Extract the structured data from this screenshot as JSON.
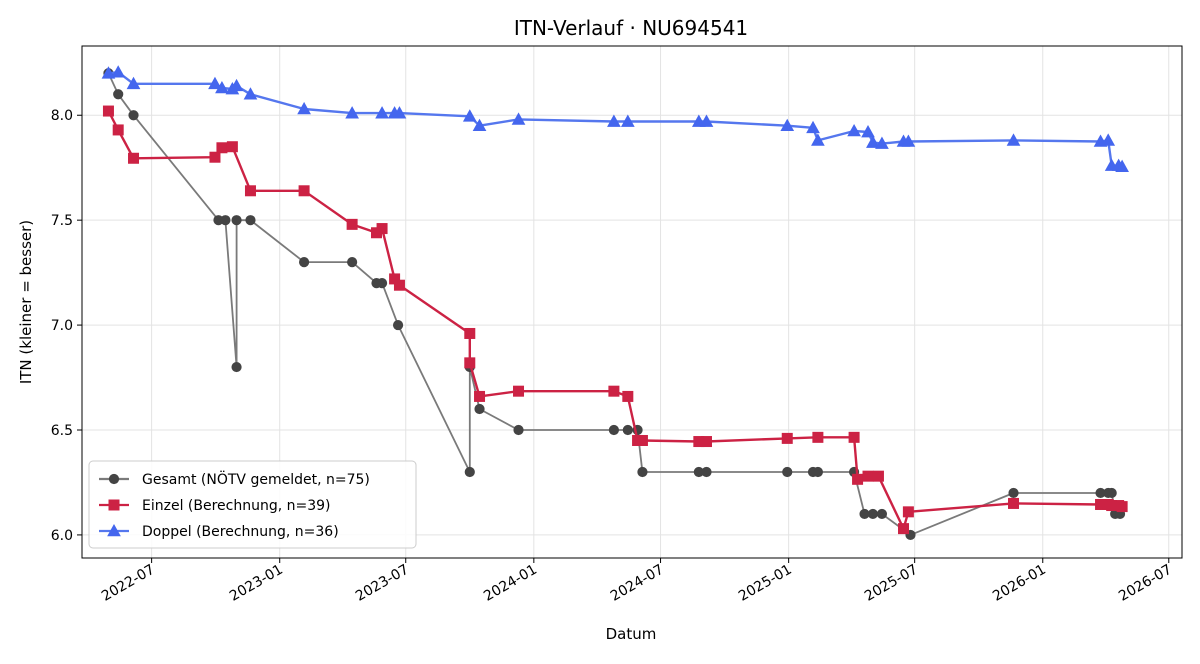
{
  "chart_data": {
    "type": "line",
    "title": "ITN-Verlauf · NU694541",
    "xlabel": "Datum",
    "ylabel": "ITN  (kleiner = besser)",
    "x_axis": "date",
    "xlim": [
      "2022-03-23",
      "2026-07-20"
    ],
    "ylim": [
      5.89,
      8.33
    ],
    "grid": true,
    "legend_position": "lower-left",
    "x_ticks": [
      {
        "date": "2022-07-01",
        "label": "2022-07"
      },
      {
        "date": "2023-01-01",
        "label": "2023-01"
      },
      {
        "date": "2023-07-01",
        "label": "2023-07"
      },
      {
        "date": "2024-01-01",
        "label": "2024-01"
      },
      {
        "date": "2024-07-01",
        "label": "2024-07"
      },
      {
        "date": "2025-01-01",
        "label": "2025-01"
      },
      {
        "date": "2025-07-01",
        "label": "2025-07"
      },
      {
        "date": "2026-01-01",
        "label": "2026-01"
      },
      {
        "date": "2026-07-01",
        "label": "2026-07"
      }
    ],
    "y_ticks": [
      {
        "value": 6.0,
        "label": "6.0"
      },
      {
        "value": 6.5,
        "label": "6.5"
      },
      {
        "value": 7.0,
        "label": "7.0"
      },
      {
        "value": 7.5,
        "label": "7.5"
      },
      {
        "value": 8.0,
        "label": "8.0"
      }
    ],
    "series": [
      {
        "name": "Gesamt (NÖTV gemeldet, n=75)",
        "color": "#444444",
        "line_color": "#7a7a7a",
        "marker": "circle",
        "points": [
          [
            "2022-04-30",
            8.2
          ],
          [
            "2022-05-14",
            8.1
          ],
          [
            "2022-06-05",
            8.0
          ],
          [
            "2022-10-05",
            7.5
          ],
          [
            "2022-10-15",
            7.5
          ],
          [
            "2022-10-31",
            6.8
          ],
          [
            "2022-10-31",
            7.5
          ],
          [
            "2022-11-20",
            7.5
          ],
          [
            "2023-02-05",
            7.3
          ],
          [
            "2023-04-15",
            7.3
          ],
          [
            "2023-05-20",
            7.2
          ],
          [
            "2023-05-28",
            7.2
          ],
          [
            "2023-06-20",
            7.0
          ],
          [
            "2023-10-01",
            6.3
          ],
          [
            "2023-10-01",
            6.8
          ],
          [
            "2023-10-15",
            6.6
          ],
          [
            "2023-12-10",
            6.5
          ],
          [
            "2024-04-25",
            6.5
          ],
          [
            "2024-05-15",
            6.5
          ],
          [
            "2024-05-29",
            6.5
          ],
          [
            "2024-06-05",
            6.3
          ],
          [
            "2024-08-25",
            6.3
          ],
          [
            "2024-09-05",
            6.3
          ],
          [
            "2024-12-30",
            6.3
          ],
          [
            "2025-02-05",
            6.3
          ],
          [
            "2025-02-12",
            6.3
          ],
          [
            "2025-04-05",
            6.3
          ],
          [
            "2025-04-20",
            6.1
          ],
          [
            "2025-05-02",
            6.1
          ],
          [
            "2025-05-15",
            6.1
          ],
          [
            "2025-06-25",
            6.0
          ],
          [
            "2025-11-20",
            6.2
          ],
          [
            "2026-03-25",
            6.2
          ],
          [
            "2026-04-05",
            6.2
          ],
          [
            "2026-04-10",
            6.2
          ],
          [
            "2026-04-15",
            6.1
          ],
          [
            "2026-04-22",
            6.1
          ]
        ]
      },
      {
        "name": "Einzel (Berechnung, n=39)",
        "color": "#cc2244",
        "line_color": "#cc2244",
        "marker": "square",
        "points": [
          [
            "2022-04-30",
            8.02
          ],
          [
            "2022-05-14",
            7.93
          ],
          [
            "2022-06-05",
            7.795
          ],
          [
            "2022-09-30",
            7.8
          ],
          [
            "2022-10-10",
            7.845
          ],
          [
            "2022-10-25",
            7.85
          ],
          [
            "2022-11-20",
            7.64
          ],
          [
            "2023-02-05",
            7.64
          ],
          [
            "2023-04-15",
            7.48
          ],
          [
            "2023-05-20",
            7.44
          ],
          [
            "2023-05-28",
            7.46
          ],
          [
            "2023-06-15",
            7.22
          ],
          [
            "2023-06-22",
            7.19
          ],
          [
            "2023-10-01",
            6.96
          ],
          [
            "2023-10-01",
            6.82
          ],
          [
            "2023-10-15",
            6.66
          ],
          [
            "2023-12-10",
            6.685
          ],
          [
            "2024-04-25",
            6.685
          ],
          [
            "2024-05-15",
            6.66
          ],
          [
            "2024-05-29",
            6.45
          ],
          [
            "2024-06-05",
            6.45
          ],
          [
            "2024-08-25",
            6.445
          ],
          [
            "2024-09-05",
            6.445
          ],
          [
            "2024-12-30",
            6.46
          ],
          [
            "2025-02-12",
            6.465
          ],
          [
            "2025-04-05",
            6.465
          ],
          [
            "2025-04-10",
            6.265
          ],
          [
            "2025-04-25",
            6.28
          ],
          [
            "2025-05-10",
            6.28
          ],
          [
            "2025-06-15",
            6.03
          ],
          [
            "2025-06-22",
            6.11
          ],
          [
            "2025-11-20",
            6.15
          ],
          [
            "2026-03-25",
            6.145
          ],
          [
            "2026-04-05",
            6.145
          ],
          [
            "2026-04-10",
            6.14
          ],
          [
            "2026-04-20",
            6.14
          ],
          [
            "2026-04-25",
            6.135
          ]
        ]
      },
      {
        "name": "Doppel (Berechnung, n=36)",
        "color": "#4466ee",
        "line_color": "#5577ee",
        "marker": "triangle",
        "points": [
          [
            "2022-04-30",
            8.2
          ],
          [
            "2022-05-14",
            8.205
          ],
          [
            "2022-06-05",
            8.15
          ],
          [
            "2022-09-30",
            8.15
          ],
          [
            "2022-10-10",
            8.13
          ],
          [
            "2022-10-25",
            8.125
          ],
          [
            "2022-10-31",
            8.14
          ],
          [
            "2022-11-20",
            8.1
          ],
          [
            "2023-02-05",
            8.03
          ],
          [
            "2023-04-15",
            8.01
          ],
          [
            "2023-05-28",
            8.01
          ],
          [
            "2023-06-15",
            8.01
          ],
          [
            "2023-06-22",
            8.01
          ],
          [
            "2023-10-01",
            7.995
          ],
          [
            "2023-10-15",
            7.95
          ],
          [
            "2023-12-10",
            7.98
          ],
          [
            "2024-04-25",
            7.97
          ],
          [
            "2024-05-15",
            7.97
          ],
          [
            "2024-08-25",
            7.97
          ],
          [
            "2024-09-05",
            7.97
          ],
          [
            "2024-12-30",
            7.95
          ],
          [
            "2025-02-05",
            7.94
          ],
          [
            "2025-02-12",
            7.88
          ],
          [
            "2025-04-05",
            7.925
          ],
          [
            "2025-04-25",
            7.92
          ],
          [
            "2025-05-02",
            7.87
          ],
          [
            "2025-05-15",
            7.865
          ],
          [
            "2025-06-15",
            7.875
          ],
          [
            "2025-06-22",
            7.875
          ],
          [
            "2025-11-20",
            7.88
          ],
          [
            "2026-03-25",
            7.875
          ],
          [
            "2026-04-05",
            7.88
          ],
          [
            "2026-04-10",
            7.76
          ],
          [
            "2026-04-20",
            7.76
          ],
          [
            "2026-04-25",
            7.755
          ]
        ]
      }
    ]
  }
}
